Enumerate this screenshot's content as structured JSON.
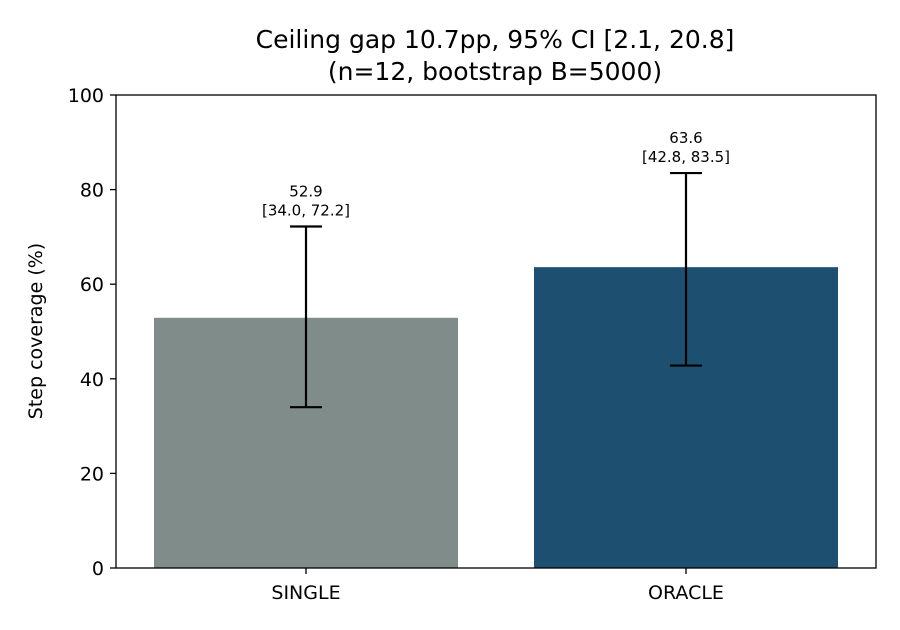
{
  "chart_data": {
    "type": "bar",
    "title": [
      "Ceiling gap 10.7pp, 95% CI [2.1, 20.8]",
      "(n=12, bootstrap B=5000)"
    ],
    "xlabel": "",
    "ylabel": "Step coverage (%)",
    "ylim": [
      0,
      100
    ],
    "yticks": [
      0,
      20,
      40,
      60,
      80,
      100
    ],
    "grid": false,
    "categories": [
      "SINGLE",
      "ORACLE"
    ],
    "values": [
      52.9,
      63.6
    ],
    "ci_low": [
      34.0,
      42.8
    ],
    "ci_high": [
      72.2,
      83.5
    ],
    "colors": [
      "#7f8c8a",
      "#1d4f70"
    ],
    "data_labels": [
      [
        "52.9",
        "[34.0, 72.2]"
      ],
      [
        "63.6",
        "[42.8, 83.5]"
      ]
    ]
  }
}
